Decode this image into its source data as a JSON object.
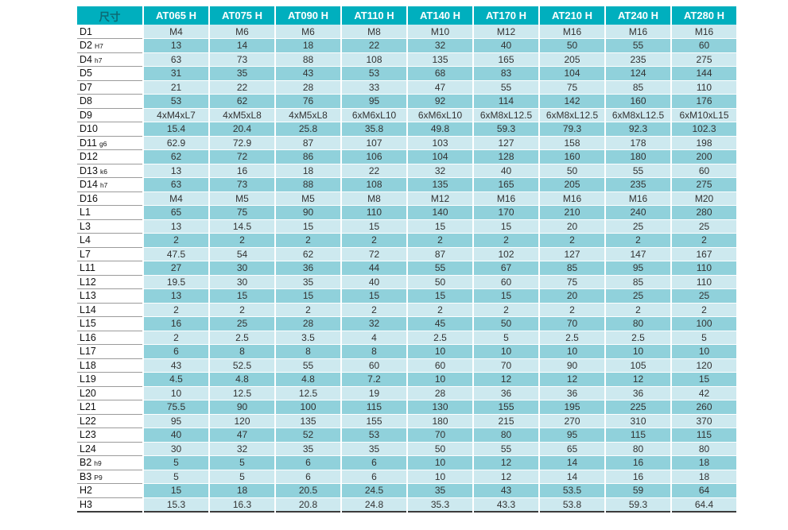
{
  "table": {
    "header_label": "尺寸",
    "columns": [
      "AT065 H",
      "AT075 H",
      "AT090 H",
      "AT110 H",
      "AT140 H",
      "AT170 H",
      "AT210 H",
      "AT240 H",
      "AT280 H"
    ],
    "rows": [
      {
        "label": "D1",
        "sub": "",
        "values": [
          "M4",
          "M6",
          "M6",
          "M8",
          "M10",
          "M12",
          "M16",
          "M16",
          "M16"
        ]
      },
      {
        "label": "D2",
        "sub": "H7",
        "values": [
          "13",
          "14",
          "18",
          "22",
          "32",
          "40",
          "50",
          "55",
          "60"
        ]
      },
      {
        "label": "D4",
        "sub": "h7",
        "values": [
          "63",
          "73",
          "88",
          "108",
          "135",
          "165",
          "205",
          "235",
          "275"
        ]
      },
      {
        "label": "D5",
        "sub": "",
        "values": [
          "31",
          "35",
          "43",
          "53",
          "68",
          "83",
          "104",
          "124",
          "144"
        ]
      },
      {
        "label": "D7",
        "sub": "",
        "values": [
          "21",
          "22",
          "28",
          "33",
          "47",
          "55",
          "75",
          "85",
          "110"
        ]
      },
      {
        "label": "D8",
        "sub": "",
        "values": [
          "53",
          "62",
          "76",
          "95",
          "92",
          "114",
          "142",
          "160",
          "176"
        ]
      },
      {
        "label": "D9",
        "sub": "",
        "values": [
          "4xM4xL7",
          "4xM5xL8",
          "4xM5xL8",
          "6xM6xL10",
          "6xM6xL10",
          "6xM8xL12.5",
          "6xM8xL12.5",
          "6xM8xL12.5",
          "6xM10xL15"
        ]
      },
      {
        "label": "D10",
        "sub": "",
        "values": [
          "15.4",
          "20.4",
          "25.8",
          "35.8",
          "49.8",
          "59.3",
          "79.3",
          "92.3",
          "102.3"
        ]
      },
      {
        "label": "D11",
        "sub": "g6",
        "values": [
          "62.9",
          "72.9",
          "87",
          "107",
          "103",
          "127",
          "158",
          "178",
          "198"
        ]
      },
      {
        "label": "D12",
        "sub": "",
        "values": [
          "62",
          "72",
          "86",
          "106",
          "104",
          "128",
          "160",
          "180",
          "200"
        ]
      },
      {
        "label": "D13",
        "sub": "k6",
        "values": [
          "13",
          "16",
          "18",
          "22",
          "32",
          "40",
          "50",
          "55",
          "60"
        ]
      },
      {
        "label": "D14",
        "sub": "h7",
        "values": [
          "63",
          "73",
          "88",
          "108",
          "135",
          "165",
          "205",
          "235",
          "275"
        ]
      },
      {
        "label": "D16",
        "sub": "",
        "values": [
          "M4",
          "M5",
          "M5",
          "M8",
          "M12",
          "M16",
          "M16",
          "M16",
          "M20"
        ]
      },
      {
        "label": "L1",
        "sub": "",
        "values": [
          "65",
          "75",
          "90",
          "110",
          "140",
          "170",
          "210",
          "240",
          "280"
        ]
      },
      {
        "label": "L3",
        "sub": "",
        "values": [
          "13",
          "14.5",
          "15",
          "15",
          "15",
          "15",
          "20",
          "25",
          "25"
        ]
      },
      {
        "label": "L4",
        "sub": "",
        "values": [
          "2",
          "2",
          "2",
          "2",
          "2",
          "2",
          "2",
          "2",
          "2"
        ]
      },
      {
        "label": "L7",
        "sub": "",
        "values": [
          "47.5",
          "54",
          "62",
          "72",
          "87",
          "102",
          "127",
          "147",
          "167"
        ]
      },
      {
        "label": "L11",
        "sub": "",
        "values": [
          "27",
          "30",
          "36",
          "44",
          "55",
          "67",
          "85",
          "95",
          "110"
        ]
      },
      {
        "label": "L12",
        "sub": "",
        "values": [
          "19.5",
          "30",
          "35",
          "40",
          "50",
          "60",
          "75",
          "85",
          "110"
        ]
      },
      {
        "label": "L13",
        "sub": "",
        "values": [
          "13",
          "15",
          "15",
          "15",
          "15",
          "15",
          "20",
          "25",
          "25"
        ]
      },
      {
        "label": "L14",
        "sub": "",
        "values": [
          "2",
          "2",
          "2",
          "2",
          "2",
          "2",
          "2",
          "2",
          "2"
        ]
      },
      {
        "label": "L15",
        "sub": "",
        "values": [
          "16",
          "25",
          "28",
          "32",
          "45",
          "50",
          "70",
          "80",
          "100"
        ]
      },
      {
        "label": "L16",
        "sub": "",
        "values": [
          "2",
          "2.5",
          "3.5",
          "4",
          "2.5",
          "5",
          "2.5",
          "2.5",
          "5"
        ]
      },
      {
        "label": "L17",
        "sub": "",
        "values": [
          "6",
          "8",
          "8",
          "8",
          "10",
          "10",
          "10",
          "10",
          "10"
        ]
      },
      {
        "label": "L18",
        "sub": "",
        "values": [
          "43",
          "52.5",
          "55",
          "60",
          "60",
          "70",
          "90",
          "105",
          "120"
        ]
      },
      {
        "label": "L19",
        "sub": "",
        "values": [
          "4.5",
          "4.8",
          "4.8",
          "7.2",
          "10",
          "12",
          "12",
          "12",
          "15"
        ]
      },
      {
        "label": "L20",
        "sub": "",
        "values": [
          "10",
          "12.5",
          "12.5",
          "19",
          "28",
          "36",
          "36",
          "36",
          "42"
        ]
      },
      {
        "label": "L21",
        "sub": "",
        "values": [
          "75.5",
          "90",
          "100",
          "115",
          "130",
          "155",
          "195",
          "225",
          "260"
        ]
      },
      {
        "label": "L22",
        "sub": "",
        "values": [
          "95",
          "120",
          "135",
          "155",
          "180",
          "215",
          "270",
          "310",
          "370"
        ]
      },
      {
        "label": "L23",
        "sub": "",
        "values": [
          "40",
          "47",
          "52",
          "53",
          "70",
          "80",
          "95",
          "115",
          "115"
        ]
      },
      {
        "label": "L24",
        "sub": "",
        "values": [
          "30",
          "32",
          "35",
          "35",
          "50",
          "55",
          "65",
          "80",
          "80"
        ]
      },
      {
        "label": "B2",
        "sub": "h9",
        "values": [
          "5",
          "5",
          "6",
          "6",
          "10",
          "12",
          "14",
          "16",
          "18"
        ]
      },
      {
        "label": "B3",
        "sub": "P9",
        "values": [
          "5",
          "5",
          "6",
          "6",
          "10",
          "12",
          "14",
          "16",
          "18"
        ]
      },
      {
        "label": "H2",
        "sub": "",
        "values": [
          "15",
          "18",
          "20.5",
          "24.5",
          "35",
          "43",
          "53.5",
          "59",
          "64"
        ]
      },
      {
        "label": "H3",
        "sub": "",
        "values": [
          "15.3",
          "16.3",
          "20.8",
          "24.8",
          "35.3",
          "43.3",
          "53.8",
          "59.3",
          "64.4"
        ]
      }
    ],
    "colors": {
      "header_bg": "#00afbe",
      "header_text": "#ffffff",
      "corner_text": "#0c6b75",
      "row_light": "#cde9ef",
      "row_dark": "#90d1db",
      "label_text": "#111111",
      "value_text": "#333333",
      "bottom_border": "#3c3c3c"
    }
  }
}
